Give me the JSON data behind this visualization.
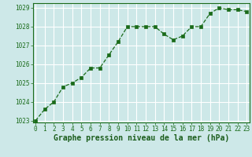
{
  "x": [
    0,
    1,
    2,
    3,
    4,
    5,
    6,
    7,
    8,
    9,
    10,
    11,
    12,
    13,
    14,
    15,
    16,
    17,
    18,
    19,
    20,
    21,
    22,
    23
  ],
  "y": [
    1023.0,
    1023.6,
    1024.0,
    1024.8,
    1025.0,
    1025.3,
    1025.8,
    1025.8,
    1026.5,
    1027.2,
    1028.0,
    1028.0,
    1028.0,
    1028.0,
    1027.6,
    1027.3,
    1027.5,
    1028.0,
    1028.0,
    1028.7,
    1029.0,
    1028.9,
    1028.9,
    1028.8
  ],
  "ylim": [
    1023,
    1029
  ],
  "yticks": [
    1023,
    1024,
    1025,
    1026,
    1027,
    1028,
    1029
  ],
  "xticks": [
    0,
    1,
    2,
    3,
    4,
    5,
    6,
    7,
    8,
    9,
    10,
    11,
    12,
    13,
    14,
    15,
    16,
    17,
    18,
    19,
    20,
    21,
    22,
    23
  ],
  "line_color": "#1a6b1a",
  "marker_color": "#1a6b1a",
  "bg_color": "#cde8e8",
  "grid_color": "#ffffff",
  "xlabel": "Graphe pression niveau de la mer (hPa)",
  "xlabel_color": "#1a5c1a",
  "tick_label_color": "#1a6b1a",
  "tick_fontsize": 5.5,
  "xlabel_fontsize": 7.0
}
